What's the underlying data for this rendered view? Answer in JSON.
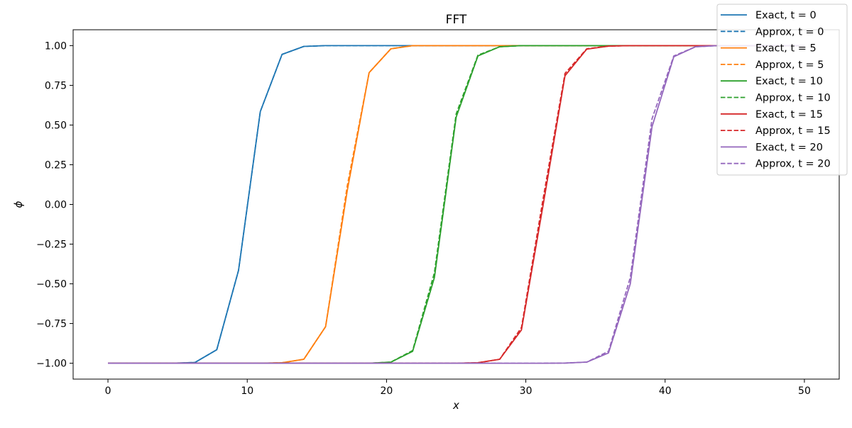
{
  "chart_data": {
    "type": "line",
    "title": "FFT",
    "xlabel": "x",
    "ylabel": "ϕ",
    "xlim": [
      -2.5,
      52.5
    ],
    "ylim": [
      -1.1,
      1.1
    ],
    "xticks": [
      0,
      10,
      20,
      30,
      40,
      50
    ],
    "xtick_labels": [
      "0",
      "10",
      "20",
      "30",
      "40",
      "50"
    ],
    "yticks": [
      -1.0,
      -0.75,
      -0.5,
      -0.25,
      0.0,
      0.25,
      0.5,
      0.75,
      1.0
    ],
    "ytick_labels": [
      "−1.00",
      "−0.75",
      "−0.50",
      "−0.25",
      "0.00",
      "0.25",
      "0.50",
      "0.75",
      "1.00"
    ],
    "grid": false,
    "legend_position": "top-right",
    "x": [
      0.0,
      1.5625,
      3.125,
      4.6875,
      6.25,
      7.8125,
      9.375,
      10.9375,
      12.5,
      14.0625,
      15.625,
      17.1875,
      18.75,
      20.3125,
      21.875,
      23.4375,
      25.0,
      26.5625,
      28.125,
      29.6875,
      31.25,
      32.8125,
      34.375,
      35.9375,
      37.5,
      39.0625,
      40.625,
      42.1875,
      43.75,
      45.3125,
      46.875,
      48.4375,
      50.0
    ],
    "series": [
      {
        "name": "Exact, t = 0",
        "color": "#1f77b4",
        "dash": "solid",
        "values": [
          -1.0,
          -1.0,
          -1.0,
          -1.0,
          -0.995,
          -0.915,
          -0.415,
          0.585,
          0.945,
          0.995,
          1.0,
          1.0,
          1.0,
          1.0,
          1.0,
          1.0,
          1.0,
          1.0,
          1.0,
          1.0,
          1.0,
          1.0,
          1.0,
          1.0,
          1.0,
          1.0,
          1.0,
          1.0,
          1.0,
          1.0,
          1.0,
          1.0,
          1.0
        ]
      },
      {
        "name": "Approx, t = 0",
        "color": "#1f77b4",
        "dash": "dashed",
        "values": [
          -1.0,
          -1.0,
          -1.0,
          -1.0,
          -0.995,
          -0.915,
          -0.415,
          0.585,
          0.945,
          0.995,
          1.0,
          1.0,
          1.0,
          1.0,
          1.0,
          1.0,
          1.0,
          1.0,
          1.0,
          1.0,
          1.0,
          1.0,
          1.0,
          1.0,
          1.0,
          1.0,
          1.0,
          1.0,
          1.0,
          1.0,
          1.0,
          1.0,
          1.0
        ]
      },
      {
        "name": "Exact, t = 5",
        "color": "#ff7f0e",
        "dash": "solid",
        "values": [
          -1.0,
          -1.0,
          -1.0,
          -1.0,
          -1.0,
          -1.0,
          -1.0,
          -1.0,
          -0.997,
          -0.975,
          -0.77,
          0.09,
          0.83,
          0.98,
          1.0,
          1.0,
          1.0,
          1.0,
          1.0,
          1.0,
          1.0,
          1.0,
          1.0,
          1.0,
          1.0,
          1.0,
          1.0,
          1.0,
          1.0,
          1.0,
          1.0,
          1.0,
          1.0
        ]
      },
      {
        "name": "Approx, t = 5",
        "color": "#ff7f0e",
        "dash": "dashed",
        "values": [
          -1.0,
          -1.0,
          -1.0,
          -1.0,
          -1.0,
          -1.0,
          -1.0,
          -1.0,
          -0.997,
          -0.975,
          -0.77,
          0.12,
          0.83,
          0.98,
          1.0,
          1.0,
          1.0,
          1.0,
          1.0,
          1.0,
          1.0,
          1.0,
          1.0,
          1.0,
          1.0,
          1.0,
          1.0,
          1.0,
          1.0,
          1.0,
          1.0,
          1.0,
          1.0
        ]
      },
      {
        "name": "Exact, t = 10",
        "color": "#2ca02c",
        "dash": "solid",
        "values": [
          -1.0,
          -1.0,
          -1.0,
          -1.0,
          -1.0,
          -1.0,
          -1.0,
          -1.0,
          -1.0,
          -1.0,
          -1.0,
          -1.0,
          -1.0,
          -0.993,
          -0.925,
          -0.46,
          0.55,
          0.935,
          0.993,
          1.0,
          1.0,
          1.0,
          1.0,
          1.0,
          1.0,
          1.0,
          1.0,
          1.0,
          1.0,
          1.0,
          1.0,
          1.0,
          1.0
        ]
      },
      {
        "name": "Approx, t = 10",
        "color": "#2ca02c",
        "dash": "dashed",
        "values": [
          -1.0,
          -1.0,
          -1.0,
          -1.0,
          -1.0,
          -1.0,
          -1.0,
          -1.0,
          -1.0,
          -1.0,
          -1.0,
          -1.0,
          -1.0,
          -0.993,
          -0.92,
          -0.43,
          0.57,
          0.94,
          0.993,
          1.0,
          1.0,
          1.0,
          1.0,
          1.0,
          1.0,
          1.0,
          1.0,
          1.0,
          1.0,
          1.0,
          1.0,
          1.0,
          1.0
        ]
      },
      {
        "name": "Exact, t = 15",
        "color": "#d62728",
        "dash": "solid",
        "values": [
          -1.0,
          -1.0,
          -1.0,
          -1.0,
          -1.0,
          -1.0,
          -1.0,
          -1.0,
          -1.0,
          -1.0,
          -1.0,
          -1.0,
          -1.0,
          -1.0,
          -1.0,
          -1.0,
          -1.0,
          -0.997,
          -0.975,
          -0.79,
          0.0,
          0.81,
          0.978,
          0.997,
          1.0,
          1.0,
          1.0,
          1.0,
          1.0,
          1.0,
          1.0,
          1.0,
          1.0
        ]
      },
      {
        "name": "Approx, t = 15",
        "color": "#d62728",
        "dash": "dashed",
        "values": [
          -1.0,
          -1.0,
          -1.0,
          -1.0,
          -1.0,
          -1.0,
          -1.0,
          -1.0,
          -1.0,
          -1.0,
          -1.0,
          -1.0,
          -1.0,
          -1.0,
          -1.0,
          -1.0,
          -1.0,
          -0.997,
          -0.975,
          -0.775,
          0.04,
          0.825,
          0.98,
          0.997,
          1.0,
          1.0,
          1.0,
          1.0,
          1.0,
          1.0,
          1.0,
          1.0,
          1.0
        ]
      },
      {
        "name": "Exact, t = 20",
        "color": "#9467bd",
        "dash": "solid",
        "values": [
          -1.0,
          -1.0,
          -1.0,
          -1.0,
          -1.0,
          -1.0,
          -1.0,
          -1.0,
          -1.0,
          -1.0,
          -1.0,
          -1.0,
          -1.0,
          -1.0,
          -1.0,
          -1.0,
          -1.0,
          -1.0,
          -1.0,
          -1.0,
          -1.0,
          -0.999,
          -0.993,
          -0.935,
          -0.5,
          0.49,
          0.93,
          0.993,
          1.0,
          1.0,
          1.0,
          1.0,
          1.0
        ]
      },
      {
        "name": "Approx, t = 20",
        "color": "#9467bd",
        "dash": "dashed",
        "values": [
          -1.0,
          -1.0,
          -1.0,
          -1.0,
          -1.0,
          -1.0,
          -1.0,
          -1.0,
          -1.0,
          -1.0,
          -1.0,
          -1.0,
          -1.0,
          -1.0,
          -1.0,
          -1.0,
          -1.0,
          -1.0,
          -1.0,
          -1.0,
          -1.0,
          -0.999,
          -0.993,
          -0.925,
          -0.46,
          0.54,
          0.935,
          0.993,
          1.0,
          1.0,
          1.0,
          1.0,
          1.0
        ]
      }
    ]
  }
}
